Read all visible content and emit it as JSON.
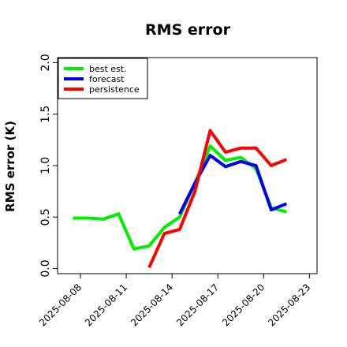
{
  "chart_data": {
    "type": "line",
    "title": "RMS error",
    "xlabel": "",
    "ylabel": "RMS error (K)",
    "ylim": [
      -0.05,
      2.05
    ],
    "xlim": [
      "2025-08-06T12:00",
      "2025-08-23T12:00"
    ],
    "yticks": [
      "0.0",
      "0.5",
      "1.0",
      "1.5",
      "2.0"
    ],
    "xticks": [
      {
        "label": "2025-08-08",
        "date": "2025-08-08",
        "color": "#000000"
      },
      {
        "label": "2025-08-11",
        "date": "2025-08-11",
        "color": "#000000"
      },
      {
        "label": "2025-08-14",
        "date": "2025-08-14",
        "color": "#008000"
      },
      {
        "label": "2025-08-17",
        "date": "2025-08-17",
        "color": "#000000"
      },
      {
        "label": "2025-08-20",
        "date": "2025-08-20",
        "color": "#000000"
      },
      {
        "label": "2025-08-23",
        "date": "2025-08-23",
        "color": "#000000"
      }
    ],
    "grid": false,
    "legend_position": "top-left",
    "series": [
      {
        "name": "best est.",
        "color": "#00ee00",
        "points": [
          [
            "2025-08-07T12:00",
            0.49
          ],
          [
            "2025-08-08T12:00",
            0.49
          ],
          [
            "2025-08-09T12:00",
            0.48
          ],
          [
            "2025-08-10T12:00",
            0.53
          ],
          [
            "2025-08-11T12:00",
            0.19
          ],
          [
            "2025-08-12T12:00",
            0.22
          ],
          [
            "2025-08-13T12:00",
            0.4
          ],
          [
            "2025-08-14T12:00",
            0.5
          ],
          [
            "2025-08-15T12:00",
            0.83
          ],
          [
            "2025-08-16T12:00",
            1.19
          ],
          [
            "2025-08-17T12:00",
            1.05
          ],
          [
            "2025-08-18T12:00",
            1.08
          ],
          [
            "2025-08-19T12:00",
            0.97
          ],
          [
            "2025-08-20T12:00",
            0.59
          ],
          [
            "2025-08-21T12:00",
            0.55
          ]
        ]
      },
      {
        "name": "forecast",
        "color": "#0000ee",
        "points": [
          [
            "2025-08-14T12:00",
            0.53
          ],
          [
            "2025-08-15T12:00",
            0.83
          ],
          [
            "2025-08-16T12:00",
            1.1
          ],
          [
            "2025-08-17T12:00",
            0.99
          ],
          [
            "2025-08-18T12:00",
            1.04
          ],
          [
            "2025-08-19T12:00",
            1.0
          ],
          [
            "2025-08-20T12:00",
            0.57
          ],
          [
            "2025-08-21T12:00",
            0.63
          ]
        ]
      },
      {
        "name": "persistence",
        "color": "#ff0000",
        "points": [
          [
            "2025-08-12T12:00",
            0.01
          ],
          [
            "2025-08-13T12:00",
            0.34
          ],
          [
            "2025-08-14T12:00",
            0.38
          ],
          [
            "2025-08-15T12:00",
            0.75
          ],
          [
            "2025-08-16T12:00",
            1.34
          ],
          [
            "2025-08-17T12:00",
            1.13
          ],
          [
            "2025-08-18T12:00",
            1.17
          ],
          [
            "2025-08-19T12:00",
            1.17
          ],
          [
            "2025-08-20T12:00",
            1.0
          ],
          [
            "2025-08-21T12:00",
            1.06
          ]
        ]
      }
    ]
  }
}
